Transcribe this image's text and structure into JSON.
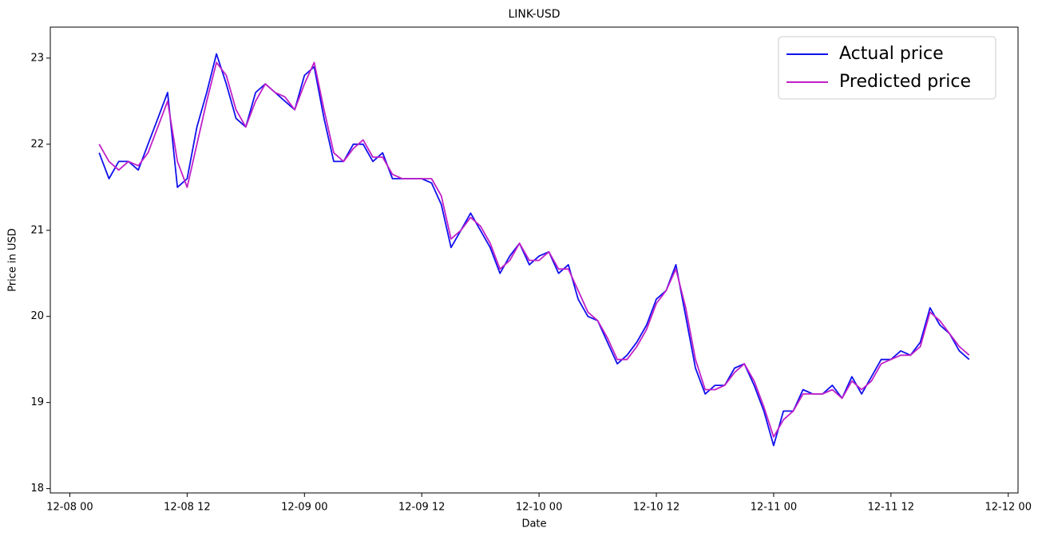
{
  "chart_data": {
    "type": "line",
    "title": "LINK-USD",
    "xlabel": "Date",
    "ylabel": "Price in USD",
    "x": [
      "12-08 03",
      "12-08 04",
      "12-08 05",
      "12-08 06",
      "12-08 07",
      "12-08 08",
      "12-08 09",
      "12-08 10",
      "12-08 11",
      "12-08 12",
      "12-08 13",
      "12-08 14",
      "12-08 15",
      "12-08 16",
      "12-08 17",
      "12-08 18",
      "12-08 19",
      "12-08 20",
      "12-08 21",
      "12-08 22",
      "12-08 23",
      "12-09 00",
      "12-09 01",
      "12-09 02",
      "12-09 03",
      "12-09 04",
      "12-09 05",
      "12-09 06",
      "12-09 07",
      "12-09 08",
      "12-09 09",
      "12-09 10",
      "12-09 11",
      "12-09 12",
      "12-09 13",
      "12-09 14",
      "12-09 15",
      "12-09 16",
      "12-09 17",
      "12-09 18",
      "12-09 19",
      "12-09 20",
      "12-09 21",
      "12-09 22",
      "12-09 23",
      "12-10 00",
      "12-10 01",
      "12-10 02",
      "12-10 03",
      "12-10 04",
      "12-10 05",
      "12-10 06",
      "12-10 07",
      "12-10 08",
      "12-10 09",
      "12-10 10",
      "12-10 11",
      "12-10 12",
      "12-10 13",
      "12-10 14",
      "12-10 15",
      "12-10 16",
      "12-10 17",
      "12-10 18",
      "12-10 19",
      "12-10 20",
      "12-10 21",
      "12-10 22",
      "12-10 23",
      "12-11 00",
      "12-11 01",
      "12-11 02",
      "12-11 03",
      "12-11 04",
      "12-11 05",
      "12-11 06",
      "12-11 07",
      "12-11 08",
      "12-11 09",
      "12-11 10",
      "12-11 11",
      "12-11 12",
      "12-11 13",
      "12-11 14",
      "12-11 15",
      "12-11 16",
      "12-11 17",
      "12-11 18",
      "12-11 19",
      "12-11 20"
    ],
    "series": [
      {
        "name": "Actual price",
        "color": "#1010ee",
        "values": [
          21.9,
          21.6,
          21.8,
          21.8,
          21.7,
          22.0,
          22.3,
          22.6,
          21.5,
          21.6,
          22.2,
          22.6,
          23.05,
          22.7,
          22.3,
          22.2,
          22.6,
          22.7,
          22.6,
          22.5,
          22.4,
          22.8,
          22.9,
          22.3,
          21.8,
          21.8,
          22.0,
          22.0,
          21.8,
          21.9,
          21.6,
          21.6,
          21.6,
          21.6,
          21.55,
          21.3,
          20.8,
          21.0,
          21.2,
          21.0,
          20.8,
          20.5,
          20.7,
          20.85,
          20.6,
          20.7,
          20.75,
          20.5,
          20.6,
          20.2,
          20.0,
          19.95,
          19.7,
          19.45,
          19.55,
          19.7,
          19.9,
          20.2,
          20.3,
          20.6,
          20.0,
          19.4,
          19.1,
          19.2,
          19.2,
          19.4,
          19.45,
          19.2,
          18.9,
          18.5,
          18.9,
          18.9,
          19.15,
          19.1,
          19.1,
          19.2,
          19.05,
          19.3,
          19.1,
          19.3,
          19.5,
          19.5,
          19.6,
          19.55,
          19.7,
          20.1,
          19.9,
          19.8,
          19.6,
          19.5
        ]
      },
      {
        "name": "Predicted price",
        "color": "#c020c8",
        "values": [
          22.0,
          21.8,
          21.7,
          21.8,
          21.75,
          21.9,
          22.2,
          22.5,
          21.8,
          21.5,
          22.0,
          22.5,
          22.95,
          22.8,
          22.4,
          22.2,
          22.5,
          22.7,
          22.6,
          22.55,
          22.4,
          22.7,
          22.95,
          22.4,
          21.9,
          21.8,
          21.95,
          22.05,
          21.85,
          21.85,
          21.65,
          21.6,
          21.6,
          21.6,
          21.6,
          21.4,
          20.9,
          21.0,
          21.15,
          21.05,
          20.85,
          20.55,
          20.65,
          20.85,
          20.65,
          20.65,
          20.75,
          20.55,
          20.55,
          20.3,
          20.05,
          19.95,
          19.75,
          19.5,
          19.5,
          19.65,
          19.85,
          20.15,
          20.3,
          20.55,
          20.1,
          19.5,
          19.15,
          19.15,
          19.2,
          19.35,
          19.45,
          19.25,
          18.95,
          18.6,
          18.8,
          18.9,
          19.1,
          19.1,
          19.1,
          19.15,
          19.05,
          19.25,
          19.15,
          19.25,
          19.45,
          19.5,
          19.55,
          19.55,
          19.65,
          20.05,
          19.95,
          19.8,
          19.65,
          19.55
        ]
      }
    ],
    "xlim": [
      "12-07 22",
      "12-12 01"
    ],
    "xticks": [
      "12-08 00",
      "12-08 12",
      "12-09 00",
      "12-09 12",
      "12-10 00",
      "12-10 12",
      "12-11 00",
      "12-11 12",
      "12-12 00"
    ],
    "ylim": [
      17.95,
      23.36
    ],
    "yticks": [
      18,
      19,
      20,
      21,
      22,
      23
    ],
    "legend": "upper right"
  }
}
